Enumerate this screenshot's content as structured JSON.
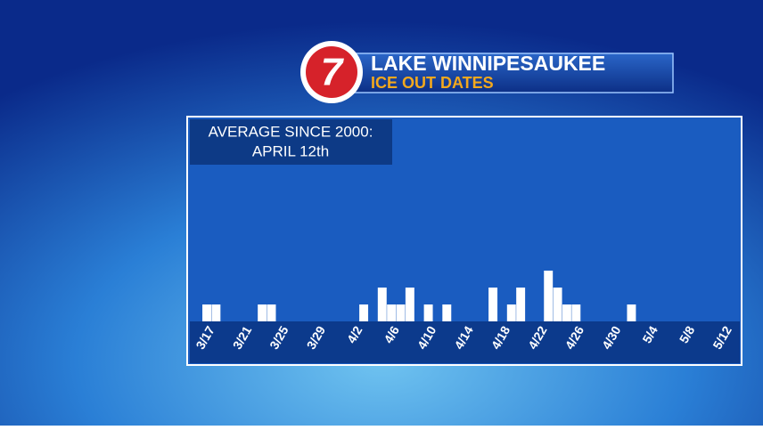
{
  "logo": "7",
  "chart_data": {
    "type": "bar",
    "title": "LAKE WINNIPESAUKEE",
    "subtitle": "ICE OUT DATES",
    "annotations": [
      "AVERAGE SINCE 2000:",
      "APRIL 12th"
    ],
    "categories": [
      "3/17",
      null,
      null,
      null,
      "3/21",
      null,
      null,
      null,
      "3/25",
      null,
      null,
      null,
      "3/29",
      null,
      null,
      null,
      "4/2",
      null,
      null,
      null,
      "4/6",
      null,
      null,
      null,
      "4/10",
      null,
      null,
      null,
      "4/14",
      null,
      null,
      null,
      "4/18",
      null,
      null,
      null,
      "4/22",
      null,
      null,
      null,
      "4/26",
      null,
      null,
      null,
      "4/30",
      null,
      null,
      null,
      "5/4",
      null,
      null,
      null,
      "5/8",
      null,
      null,
      null,
      "5/12"
    ],
    "values": [
      1,
      1,
      0,
      0,
      0,
      0,
      1,
      1,
      0,
      0,
      0,
      0,
      0,
      0,
      0,
      0,
      0,
      1,
      0,
      2,
      1,
      1,
      2,
      0,
      1,
      0,
      1,
      0,
      0,
      0,
      0,
      2,
      0,
      1,
      2,
      0,
      0,
      3,
      2,
      1,
      1,
      0,
      0,
      0,
      0,
      0,
      1,
      0,
      0,
      0,
      0,
      0,
      0,
      0,
      0,
      0,
      0
    ],
    "color": "#ffffff",
    "ylim": [
      0,
      12
    ]
  }
}
